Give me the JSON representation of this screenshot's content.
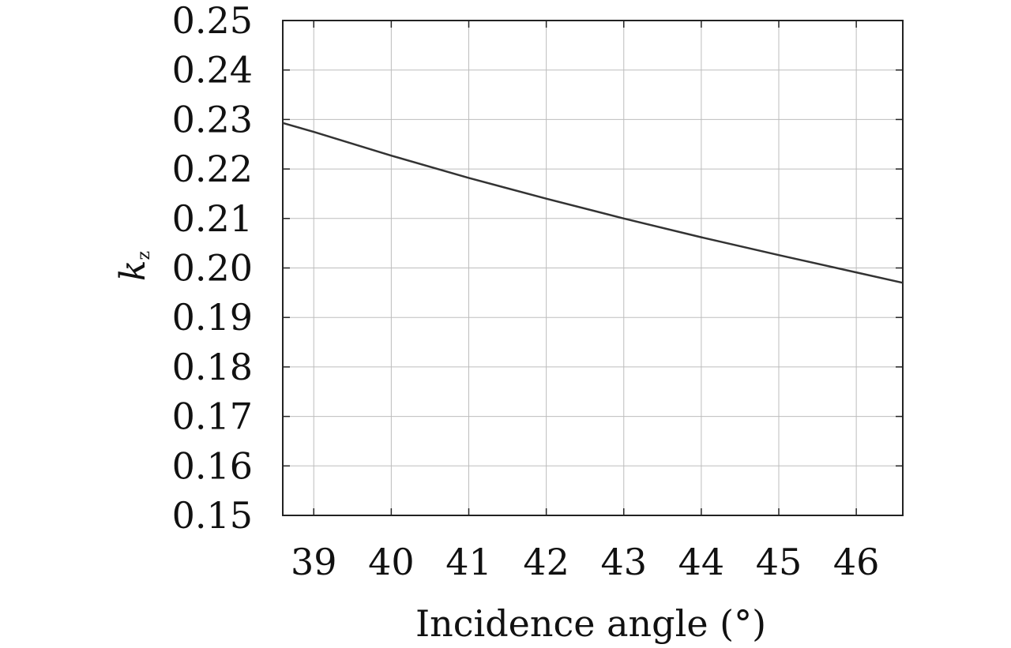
{
  "chart_data": {
    "type": "line",
    "title": "",
    "xlabel": "Incidence angle (°)",
    "ylabel": {
      "main": "k",
      "subscript": "z"
    },
    "xlim": [
      38.6,
      46.6
    ],
    "ylim": [
      0.15,
      0.25
    ],
    "x_ticks": [
      "39",
      "40",
      "41",
      "42",
      "43",
      "44",
      "45",
      "46"
    ],
    "y_ticks": [
      "0.15",
      "0.16",
      "0.17",
      "0.18",
      "0.19",
      "0.20",
      "0.21",
      "0.22",
      "0.23",
      "0.24",
      "0.25"
    ],
    "grid": true,
    "legend": "none",
    "line_color": "#333333",
    "series": [
      {
        "x": [
          38.6,
          39,
          40,
          41,
          42,
          43,
          44,
          45,
          46,
          46.6
        ],
        "y": [
          0.2293,
          0.2275,
          0.2227,
          0.2182,
          0.214,
          0.21,
          0.2062,
          0.2026,
          0.1991,
          0.197
        ]
      }
    ]
  }
}
